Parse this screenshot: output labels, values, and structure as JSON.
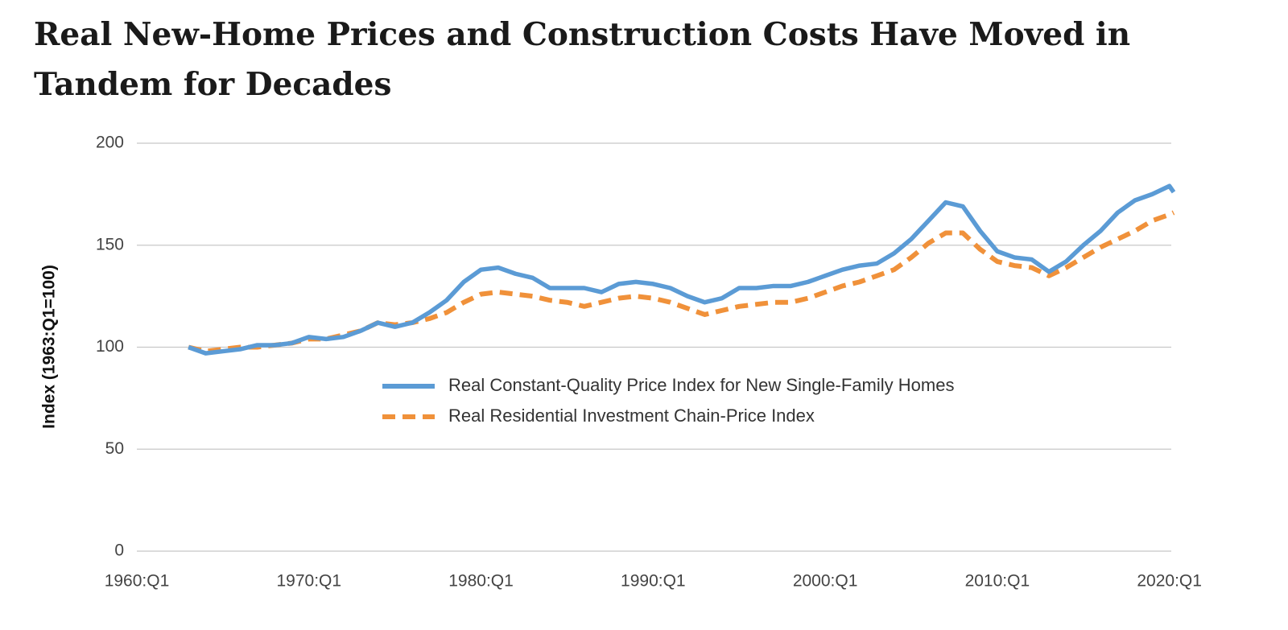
{
  "chart_data": {
    "type": "line",
    "title": "Real New-Home Prices and Construction Costs Have Moved in Tandem for Decades",
    "y_label": "Index (1963:Q1=100)",
    "x": [
      "1963:Q1",
      "1964:Q1",
      "1965:Q1",
      "1966:Q1",
      "1967:Q1",
      "1968:Q1",
      "1969:Q1",
      "1970:Q1",
      "1971:Q1",
      "1972:Q1",
      "1973:Q1",
      "1974:Q1",
      "1975:Q1",
      "1976:Q1",
      "1977:Q1",
      "1978:Q1",
      "1979:Q1",
      "1980:Q1",
      "1981:Q1",
      "1982:Q1",
      "1983:Q1",
      "1984:Q1",
      "1985:Q1",
      "1986:Q1",
      "1987:Q1",
      "1988:Q1",
      "1989:Q1",
      "1990:Q1",
      "1991:Q1",
      "1992:Q1",
      "1993:Q1",
      "1994:Q1",
      "1995:Q1",
      "1996:Q1",
      "1997:Q1",
      "1998:Q1",
      "1999:Q1",
      "2000:Q1",
      "2001:Q1",
      "2002:Q1",
      "2003:Q1",
      "2004:Q1",
      "2005:Q1",
      "2006:Q1",
      "2007:Q1",
      "2008:Q1",
      "2009:Q1",
      "2010:Q1",
      "2011:Q1",
      "2012:Q1",
      "2013:Q1",
      "2014:Q1",
      "2015:Q1",
      "2016:Q1",
      "2017:Q1",
      "2018:Q1",
      "2019:Q1",
      "2020:Q1",
      "2020:Q2"
    ],
    "series": [
      {
        "name": "Real Constant-Quality Price Index for New Single-Family Homes",
        "color": "#5b9bd5",
        "dashed": false,
        "values": [
          100,
          97,
          98,
          99,
          101,
          101,
          102,
          105,
          104,
          105,
          108,
          112,
          110,
          112,
          117,
          123,
          132,
          138,
          139,
          136,
          134,
          129,
          129,
          129,
          127,
          131,
          132,
          131,
          129,
          125,
          122,
          124,
          129,
          129,
          130,
          130,
          132,
          135,
          138,
          140,
          141,
          146,
          153,
          162,
          171,
          169,
          157,
          147,
          144,
          143,
          137,
          142,
          150,
          157,
          166,
          172,
          175,
          179,
          176
        ]
      },
      {
        "name": "Real Residential Investment Chain-Price Index",
        "color": "#f0913a",
        "dashed": true,
        "values": [
          100,
          98,
          99,
          100,
          100,
          101,
          102,
          104,
          104,
          106,
          108,
          112,
          111,
          112,
          114,
          117,
          122,
          126,
          127,
          126,
          125,
          123,
          122,
          120,
          122,
          124,
          125,
          124,
          122,
          119,
          116,
          118,
          120,
          121,
          122,
          122,
          124,
          127,
          130,
          132,
          135,
          138,
          144,
          151,
          156,
          156,
          148,
          142,
          140,
          139,
          135,
          139,
          144,
          149,
          153,
          157,
          162,
          165,
          166
        ]
      }
    ],
    "xlim": [
      "1960:Q1",
      "2020:Q2"
    ],
    "xticks": [
      "1960:Q1",
      "1970:Q1",
      "1980:Q1",
      "1990:Q1",
      "2000:Q1",
      "2010:Q1",
      "2020:Q1"
    ],
    "ylim": [
      0,
      200
    ],
    "yticks": [
      0,
      50,
      100,
      150,
      200
    ],
    "grid": true
  }
}
